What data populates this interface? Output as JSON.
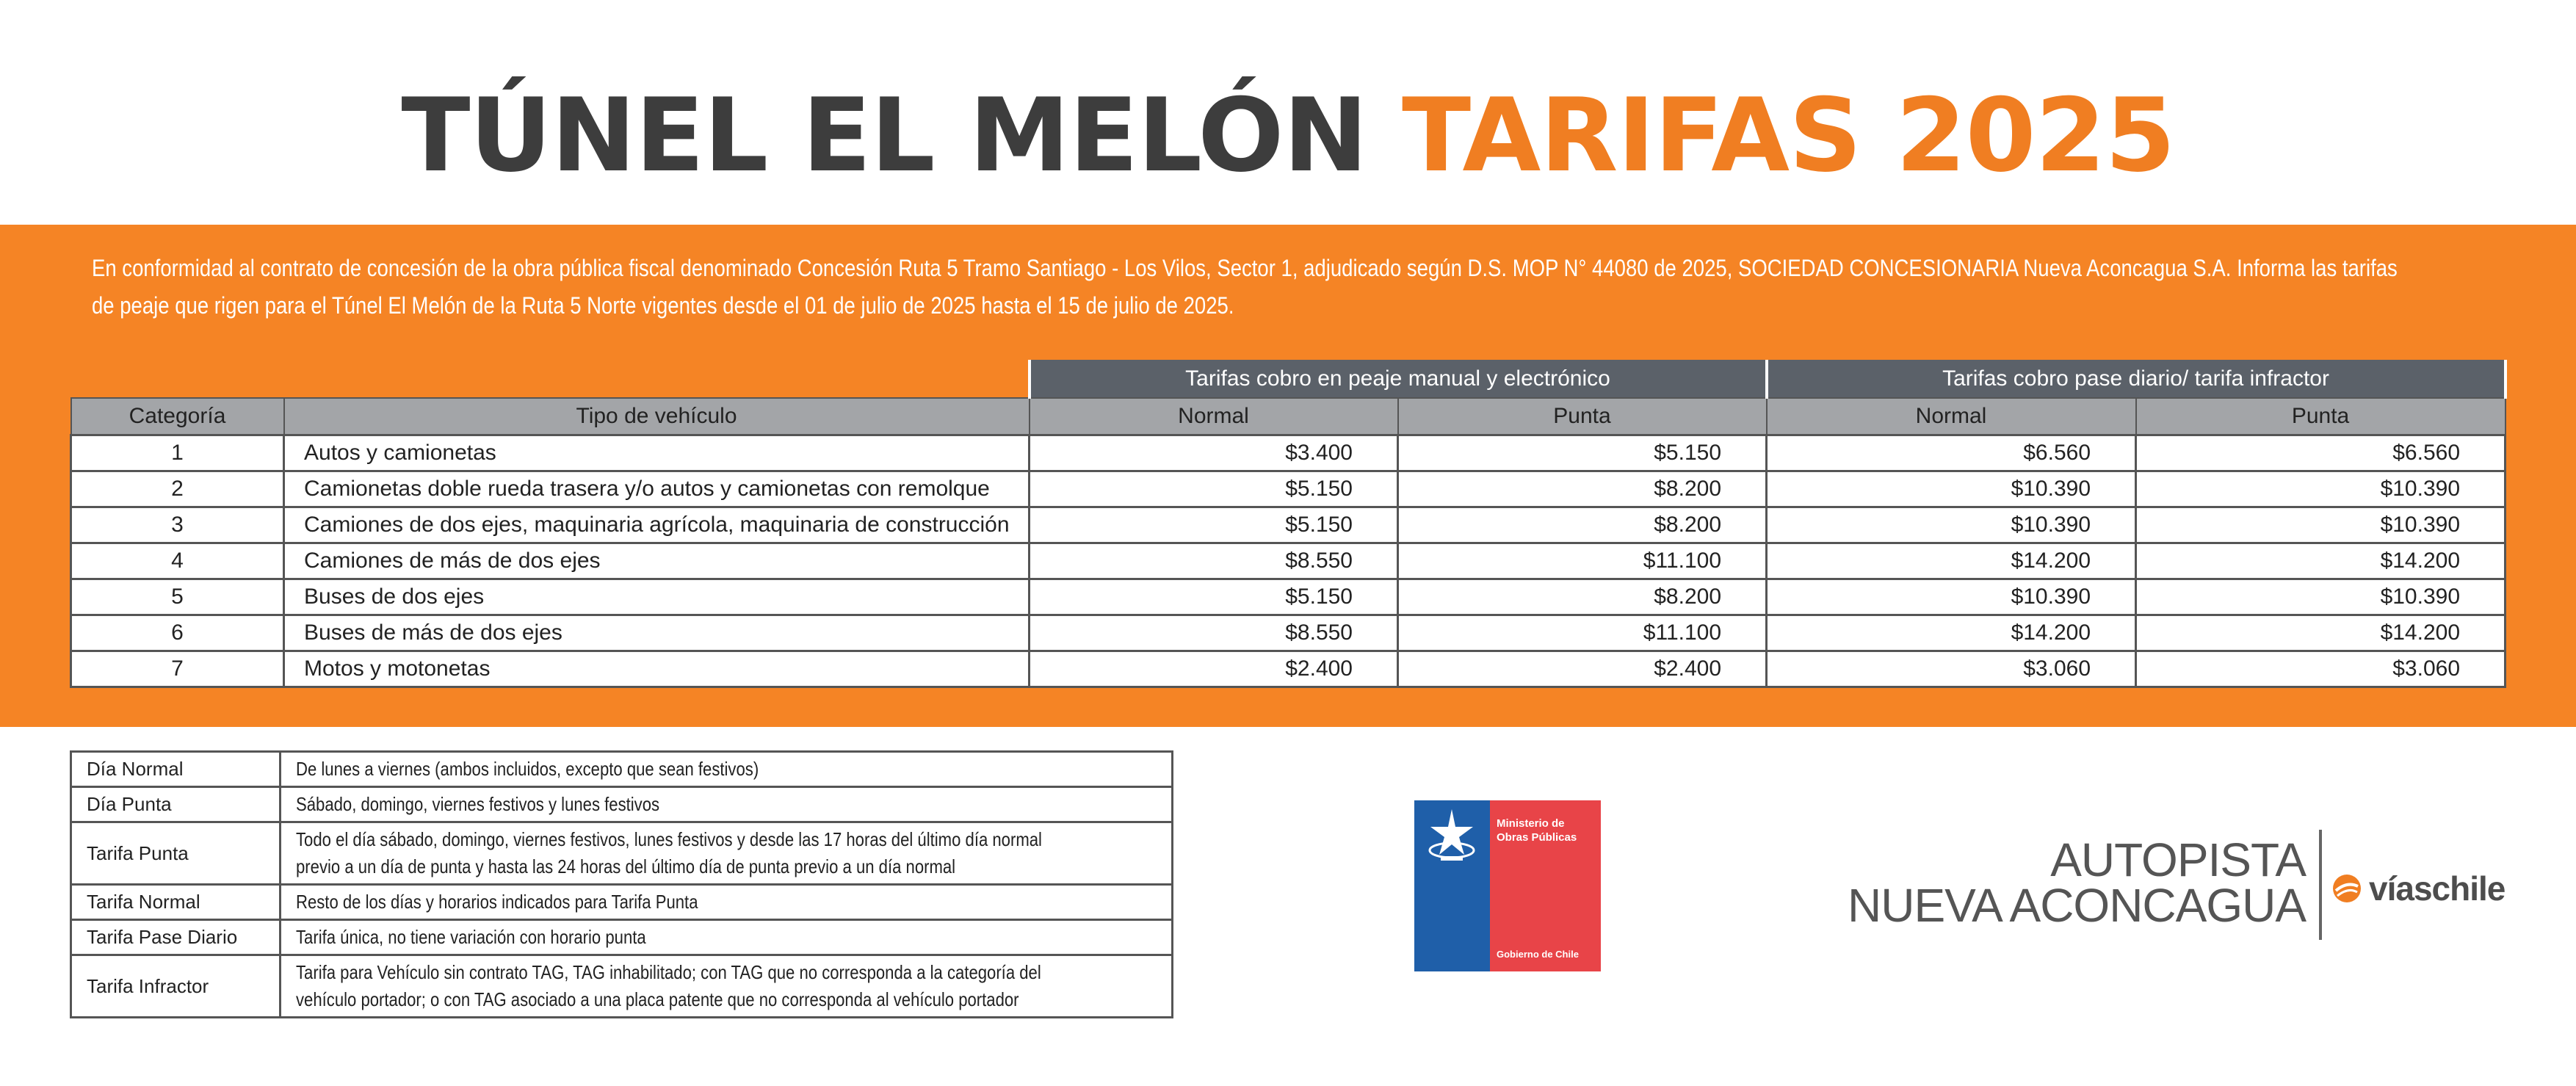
{
  "title": {
    "part1": "TÚNEL EL MELÓN",
    "part2": "TARIFAS 2025"
  },
  "intro": {
    "line1": "En conformidad al contrato de concesión de la obra pública fiscal denominado Concesión Ruta 5 Tramo Santiago - Los Vilos, Sector 1, adjudicado según D.S. MOP N° 44080 de 2025, SOCIEDAD CONCESIONARIA Nueva Aconcagua S.A. Informa las tarifas",
    "line2": "de peaje que rigen para el Túnel El Melón de la Ruta 5 Norte vigentes desde el 01 de julio de 2025 hasta el 15 de julio de 2025."
  },
  "fare_table": {
    "group_headers": [
      "Tarifas cobro en peaje manual y electrónico",
      "Tarifas cobro pase diario/ tarifa infractor"
    ],
    "headers": [
      "Categoría",
      "Tipo de vehículo",
      "Normal",
      "Punta",
      "Normal",
      "Punta"
    ],
    "rows": [
      {
        "cat": "1",
        "type": "Autos y camionetas",
        "mn": "$3.400",
        "mp": "$5.150",
        "pn": "$6.560",
        "pp": "$6.560"
      },
      {
        "cat": "2",
        "type": "Camionetas doble rueda trasera y/o autos y camionetas con remolque",
        "mn": "$5.150",
        "mp": "$8.200",
        "pn": "$10.390",
        "pp": "$10.390"
      },
      {
        "cat": "3",
        "type": "Camiones de dos ejes, maquinaria agrícola, maquinaria de construcción",
        "mn": "$5.150",
        "mp": "$8.200",
        "pn": "$10.390",
        "pp": "$10.390"
      },
      {
        "cat": "4",
        "type": "Camiones de más de dos ejes",
        "mn": "$8.550",
        "mp": "$11.100",
        "pn": "$14.200",
        "pp": "$14.200"
      },
      {
        "cat": "5",
        "type": "Buses de dos ejes",
        "mn": "$5.150",
        "mp": "$8.200",
        "pn": "$10.390",
        "pp": "$10.390"
      },
      {
        "cat": "6",
        "type": "Buses de más de dos ejes",
        "mn": "$8.550",
        "mp": "$11.100",
        "pn": "$14.200",
        "pp": "$14.200"
      },
      {
        "cat": "7",
        "type": "Motos y motonetas",
        "mn": "$2.400",
        "mp": "$2.400",
        "pn": "$3.060",
        "pp": "$3.060"
      }
    ]
  },
  "legend": [
    {
      "term": "Día Normal",
      "lines": [
        "De lunes a viernes (ambos incluidos, excepto que sean festivos)"
      ]
    },
    {
      "term": "Día Punta",
      "lines": [
        "Sábado, domingo, viernes festivos y lunes festivos"
      ]
    },
    {
      "term": "Tarifa Punta",
      "lines": [
        "Todo el día sábado, domingo, viernes festivos, lunes festivos y desde las 17 horas del último día normal",
        "previo a un día de punta y hasta las 24 horas del último día de punta previo a un día normal"
      ]
    },
    {
      "term": "Tarifa Normal",
      "lines": [
        "Resto de los días y horarios indicados para Tarifa Punta"
      ]
    },
    {
      "term": "Tarifa Pase Diario",
      "lines": [
        "Tarifa única, no tiene variación con horario punta"
      ]
    },
    {
      "term": "Tarifa Infractor",
      "lines": [
        "Tarifa para Vehículo sin contrato TAG, TAG inhabilitado; con TAG que no corresponda a la categoría del",
        "vehículo portador; o con TAG asociado a una placa patente que no corresponda al vehículo portador"
      ]
    }
  ],
  "gov_logo": {
    "ministry": "Ministerio de Obras Públicas",
    "government": "Gobierno de Chile"
  },
  "concession_logo": {
    "line1": "AUTOPISTA",
    "line2": "NUEVA ACONCAGUA",
    "partner": "víaschile"
  },
  "colors": {
    "orange": "#f58425",
    "title_gray": "#3d3d3d",
    "header_dark": "#5b6169",
    "header_light": "#a3a5a8",
    "gov_blue": "#1f5fa9",
    "gov_red": "#e84448"
  }
}
